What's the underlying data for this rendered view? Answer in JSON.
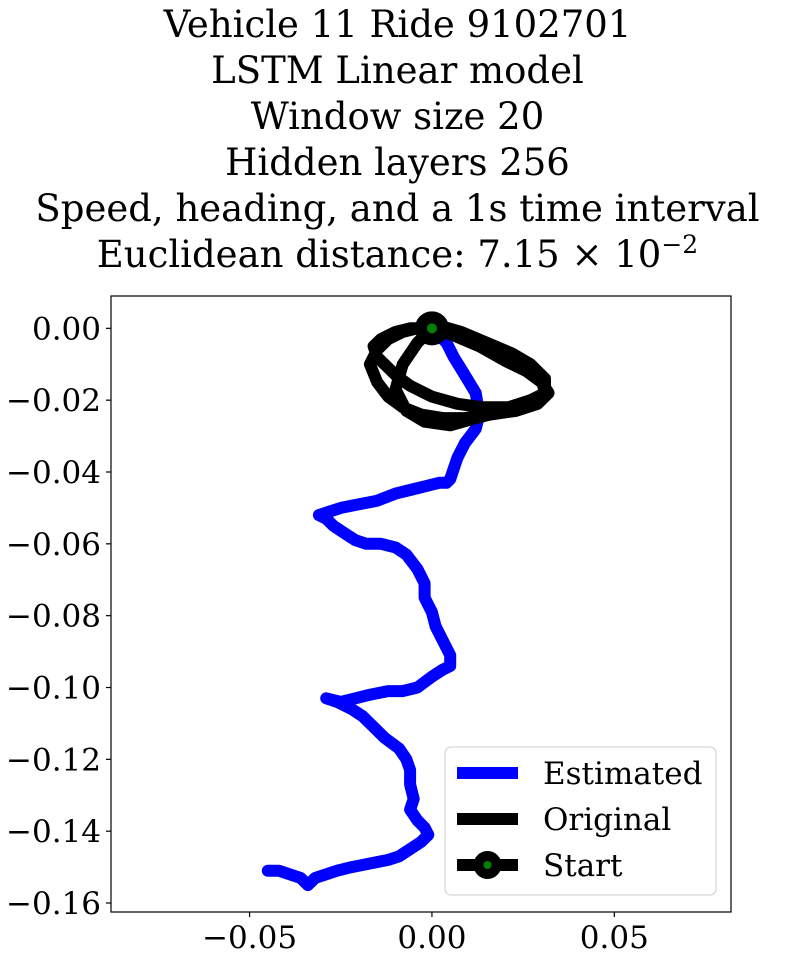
{
  "chart_data": {
    "type": "line",
    "title_lines": [
      "Vehicle 11 Ride 9102701",
      "LSTM Linear model",
      "Window size 20",
      "Hidden layers 256",
      "Speed, heading, and a 1s time interval"
    ],
    "distance_line": {
      "prefix": "Euclidean distance: 7.15",
      "times": "×",
      "base": "10",
      "exponent": "−2"
    },
    "xlabel": "",
    "ylabel": "",
    "xlim": [
      -0.088,
      0.082
    ],
    "ylim": [
      -0.1625,
      0.009
    ],
    "x_ticks": [
      -0.05,
      0.0,
      0.05
    ],
    "x_tick_labels": [
      "−0.05",
      "0.00",
      "0.05"
    ],
    "y_ticks": [
      0.0,
      -0.02,
      -0.04,
      -0.06,
      -0.08,
      -0.1,
      -0.12,
      -0.14,
      -0.16
    ],
    "y_tick_labels": [
      "0.00",
      "−0.02",
      "−0.04",
      "−0.06",
      "−0.08",
      "−0.10",
      "−0.12",
      "−0.14",
      "−0.16"
    ],
    "grid": false,
    "legend_position": "lower-right",
    "series": [
      {
        "name": "Estimated",
        "color": "#0000ff",
        "x": [
          0.0,
          0.004,
          0.006,
          0.009,
          0.012,
          0.013,
          0.012,
          0.009,
          0.007,
          0.006,
          0.005,
          0.004,
          0.002,
          -0.002,
          -0.006,
          -0.01,
          -0.015,
          -0.02,
          -0.025,
          -0.028,
          -0.031,
          -0.029,
          -0.027,
          -0.024,
          -0.021,
          -0.018,
          -0.014,
          -0.01,
          -0.007,
          -0.004,
          -0.002,
          -0.002,
          0.0,
          0.001,
          0.003,
          0.005,
          0.005,
          0.003,
          0.0,
          -0.004,
          -0.008,
          -0.012,
          -0.017,
          -0.021,
          -0.025,
          -0.029,
          -0.026,
          -0.022,
          -0.019,
          -0.016,
          -0.013,
          -0.009,
          -0.007,
          -0.006,
          -0.006,
          -0.005,
          -0.006,
          -0.004,
          -0.002,
          -0.001,
          -0.003,
          -0.006,
          -0.009,
          -0.012,
          -0.017,
          -0.022,
          -0.026,
          -0.029,
          -0.032,
          -0.034,
          -0.036,
          -0.039,
          -0.042,
          -0.045
        ],
        "y": [
          0.0,
          -0.004,
          -0.008,
          -0.013,
          -0.018,
          -0.024,
          -0.028,
          -0.032,
          -0.036,
          -0.039,
          -0.042,
          -0.043,
          -0.043,
          -0.044,
          -0.045,
          -0.046,
          -0.048,
          -0.049,
          -0.05,
          -0.051,
          -0.052,
          -0.053,
          -0.055,
          -0.057,
          -0.059,
          -0.06,
          -0.06,
          -0.061,
          -0.063,
          -0.067,
          -0.071,
          -0.075,
          -0.079,
          -0.083,
          -0.087,
          -0.091,
          -0.094,
          -0.095,
          -0.097,
          -0.1,
          -0.101,
          -0.101,
          -0.102,
          -0.103,
          -0.104,
          -0.103,
          -0.104,
          -0.106,
          -0.108,
          -0.111,
          -0.114,
          -0.117,
          -0.12,
          -0.123,
          -0.127,
          -0.131,
          -0.134,
          -0.137,
          -0.139,
          -0.141,
          -0.143,
          -0.145,
          -0.147,
          -0.148,
          -0.149,
          -0.15,
          -0.151,
          -0.152,
          -0.153,
          -0.155,
          -0.153,
          -0.152,
          -0.151,
          -0.151
        ]
      },
      {
        "name": "Original",
        "color": "#000000",
        "x": [
          0.0,
          0.006,
          0.013,
          0.02,
          0.026,
          0.03,
          0.031,
          0.027,
          0.021,
          0.014,
          0.007,
          0.0,
          -0.006,
          -0.01,
          -0.013,
          -0.015,
          -0.016,
          -0.014,
          -0.01,
          -0.006,
          0.0,
          0.006,
          0.013,
          0.02,
          0.026,
          0.03,
          0.032,
          0.029,
          0.023,
          0.016,
          0.009,
          0.003,
          -0.003,
          -0.008,
          -0.012,
          -0.015,
          -0.017,
          -0.015,
          -0.012,
          -0.008,
          -0.004,
          0.001,
          0.008,
          0.015,
          0.022,
          0.027,
          0.031,
          0.031,
          0.027,
          0.02,
          0.012,
          0.005,
          -0.002,
          -0.007,
          -0.01,
          -0.008,
          -0.004,
          0.0
        ],
        "y": [
          0.0,
          -0.002,
          -0.004,
          -0.007,
          -0.01,
          -0.014,
          -0.018,
          -0.02,
          -0.022,
          -0.022,
          -0.021,
          -0.019,
          -0.016,
          -0.013,
          -0.01,
          -0.008,
          -0.005,
          -0.003,
          -0.001,
          0.0,
          0.0,
          -0.002,
          -0.005,
          -0.009,
          -0.012,
          -0.015,
          -0.018,
          -0.021,
          -0.023,
          -0.024,
          -0.025,
          -0.025,
          -0.024,
          -0.022,
          -0.019,
          -0.015,
          -0.01,
          -0.006,
          -0.003,
          -0.001,
          0.0,
          0.001,
          -0.001,
          -0.004,
          -0.007,
          -0.01,
          -0.014,
          -0.018,
          -0.021,
          -0.023,
          -0.025,
          -0.027,
          -0.026,
          -0.023,
          -0.017,
          -0.01,
          -0.004,
          0.0
        ]
      }
    ],
    "start_point": {
      "name": "Start",
      "x": 0.0,
      "y": 0.0,
      "marker_face_color": "#008000",
      "marker_edge_color": "#000000"
    }
  }
}
